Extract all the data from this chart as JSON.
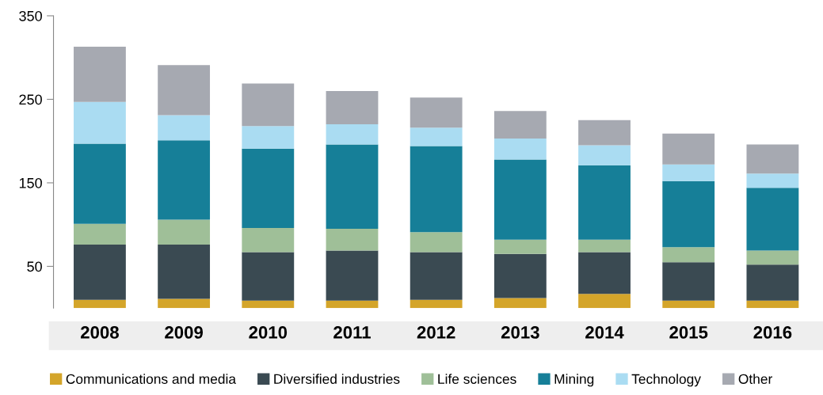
{
  "chart_data": {
    "type": "bar",
    "stacked": true,
    "categories": [
      "2008",
      "2009",
      "2010",
      "2011",
      "2012",
      "2013",
      "2014",
      "2015",
      "2016"
    ],
    "series": [
      {
        "name": "Communications and media",
        "color": "#d4a52a",
        "values": [
          10,
          11,
          9,
          9,
          10,
          12,
          17,
          9,
          9
        ]
      },
      {
        "name": "Diversified industries",
        "color": "#3a4a52",
        "values": [
          66,
          65,
          58,
          60,
          57,
          53,
          50,
          46,
          43
        ]
      },
      {
        "name": "Life sciences",
        "color": "#9fbf98",
        "values": [
          25,
          30,
          29,
          26,
          24,
          17,
          15,
          18,
          17
        ]
      },
      {
        "name": "Mining",
        "color": "#167f98",
        "values": [
          96,
          95,
          95,
          101,
          103,
          96,
          89,
          79,
          75
        ]
      },
      {
        "name": "Technology",
        "color": "#aadcf2",
        "values": [
          50,
          30,
          27,
          24,
          22,
          25,
          24,
          20,
          17
        ]
      },
      {
        "name": "Other",
        "color": "#a6a9b1",
        "values": [
          66,
          60,
          51,
          40,
          36,
          33,
          30,
          37,
          35
        ]
      }
    ],
    "ylim": [
      0,
      350
    ],
    "yticks": [
      50,
      150,
      250,
      350
    ],
    "grid": false,
    "legend": "bottom"
  }
}
